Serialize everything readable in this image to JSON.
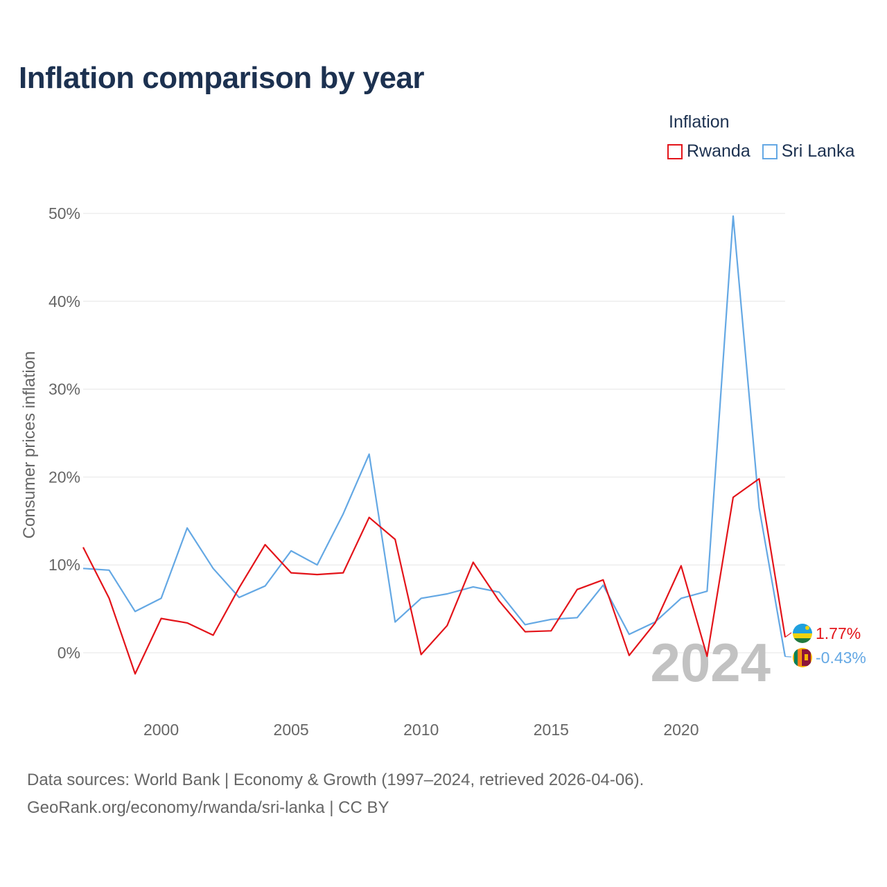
{
  "title": "Inflation comparison by year",
  "legend": {
    "title": "Inflation",
    "items": [
      {
        "label": "Rwanda",
        "color": "#e3141a"
      },
      {
        "label": "Sri Lanka",
        "color": "#64a8e4"
      }
    ]
  },
  "footer": {
    "line1": "Data sources: World Bank | Economy & Growth (1997–2024, retrieved 2026-04-06).",
    "line2": "GeoRank.org/economy/rwanda/sri-lanka | CC BY"
  },
  "chart_data": {
    "type": "line",
    "title": "Inflation comparison by year",
    "xlabel": "",
    "ylabel": "Consumer prices inflation",
    "xlim": [
      1997,
      2024
    ],
    "ylim": [
      -7,
      52
    ],
    "xticks": [
      2000,
      2005,
      2010,
      2015,
      2020
    ],
    "yticks": [
      0,
      10,
      20,
      30,
      40,
      50
    ],
    "ytick_labels": [
      "0%",
      "10%",
      "20%",
      "30%",
      "40%",
      "50%"
    ],
    "grid": true,
    "watermark_year": "2024",
    "x": [
      1997,
      1998,
      1999,
      2000,
      2001,
      2002,
      2003,
      2004,
      2005,
      2006,
      2007,
      2008,
      2009,
      2010,
      2011,
      2012,
      2013,
      2014,
      2015,
      2016,
      2017,
      2018,
      2019,
      2020,
      2021,
      2022,
      2023,
      2024
    ],
    "series": [
      {
        "name": "Rwanda",
        "color": "#e3141a",
        "end_label": "1.77%",
        "values": [
          12.0,
          6.2,
          -2.4,
          3.9,
          3.4,
          2.0,
          7.4,
          12.3,
          9.1,
          8.9,
          9.1,
          15.4,
          12.9,
          -0.2,
          3.1,
          10.3,
          5.9,
          2.4,
          2.5,
          7.2,
          8.3,
          -0.3,
          3.4,
          9.9,
          -0.4,
          17.7,
          19.8,
          1.77
        ]
      },
      {
        "name": "Sri Lanka",
        "color": "#64a8e4",
        "end_label": "-0.43%",
        "values": [
          9.6,
          9.4,
          4.7,
          6.2,
          14.2,
          9.6,
          6.3,
          7.6,
          11.6,
          10.0,
          15.8,
          22.6,
          3.5,
          6.2,
          6.7,
          7.5,
          6.9,
          3.2,
          3.8,
          4.0,
          7.7,
          2.1,
          3.5,
          6.2,
          7.0,
          49.7,
          16.5,
          -0.43
        ]
      }
    ]
  }
}
